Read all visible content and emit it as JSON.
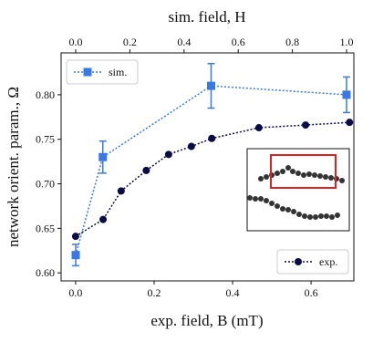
{
  "chart_data": {
    "type": "line",
    "x_label": "exp. field, B (mT)",
    "x2_label": "sim. field, H",
    "y_label": "network orient. param., Ω",
    "xlim": [
      -0.037,
      0.709
    ],
    "xticks": [
      {
        "value": 0.0,
        "label": "0.0"
      },
      {
        "value": 0.2,
        "label": "0.2"
      },
      {
        "value": 0.4,
        "label": "0.4"
      },
      {
        "value": 0.6,
        "label": "0.6"
      }
    ],
    "x2lim": [
      -0.054,
      1.027
    ],
    "x2ticks": [
      {
        "value": 0.0,
        "label": "0.0"
      },
      {
        "value": 0.2,
        "label": "0.2"
      },
      {
        "value": 0.4,
        "label": "0.4"
      },
      {
        "value": 0.6,
        "label": "0.6"
      },
      {
        "value": 0.8,
        "label": "0.8"
      },
      {
        "value": 1.0,
        "label": "1.0"
      }
    ],
    "ylim": [
      0.591,
      0.847
    ],
    "yticks": [
      {
        "value": 0.6,
        "label": "0.60"
      },
      {
        "value": 0.65,
        "label": "0.65"
      },
      {
        "value": 0.7,
        "label": "0.70"
      },
      {
        "value": 0.75,
        "label": "0.75"
      },
      {
        "value": 0.8,
        "label": "0.80"
      }
    ],
    "series": [
      {
        "name": "sim.",
        "color": "#3a78e6",
        "axis": "x2",
        "marker": "square",
        "x": [
          0.0,
          0.1,
          0.5,
          1.0
        ],
        "values": [
          0.62,
          0.73,
          0.81,
          0.8
        ],
        "errors": [
          0.012,
          0.018,
          0.025,
          0.02
        ]
      },
      {
        "name": "exp.",
        "color": "#0b0b45",
        "axis": "x",
        "marker": "circle",
        "x": [
          0.0,
          0.07,
          0.116,
          0.18,
          0.237,
          0.295,
          0.347,
          0.467,
          0.586,
          0.698
        ],
        "values": [
          0.641,
          0.66,
          0.692,
          0.715,
          0.733,
          0.742,
          0.751,
          0.763,
          0.766,
          0.769
        ]
      }
    ]
  }
}
